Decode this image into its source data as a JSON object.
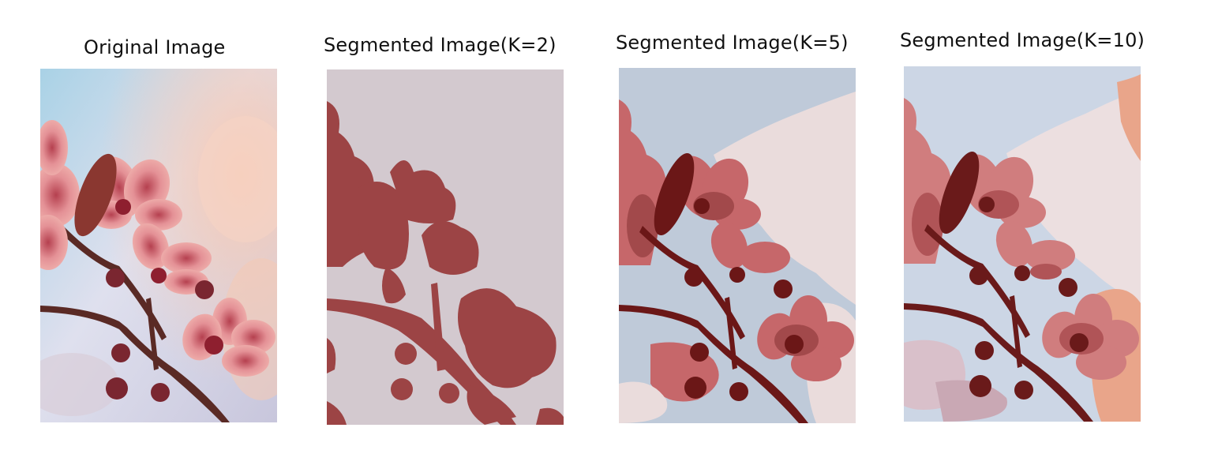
{
  "panels": [
    {
      "title": "Original Image"
    },
    {
      "title": "Segmented Image(K=2)"
    },
    {
      "title": "Segmented Image(K=5)"
    },
    {
      "title": "Segmented Image(K=10)"
    }
  ],
  "colors": {
    "k2_background": "#d3c9cf",
    "k2_flower": "#9c4445",
    "k5_sky": "#bfcad9",
    "k5_haze": "#eadcdc",
    "k5_petal": "#c6676a",
    "k5_mid": "#a2494b",
    "k5_dark": "#6b1717",
    "k10_sky": "#ccd6e5",
    "k10_haze": "#ecdfe0",
    "k10_peach": "#e9a58a",
    "k10_petal": "#d07d7e",
    "k10_mid": "#b05457",
    "k10_dark": "#6a1a1a"
  }
}
